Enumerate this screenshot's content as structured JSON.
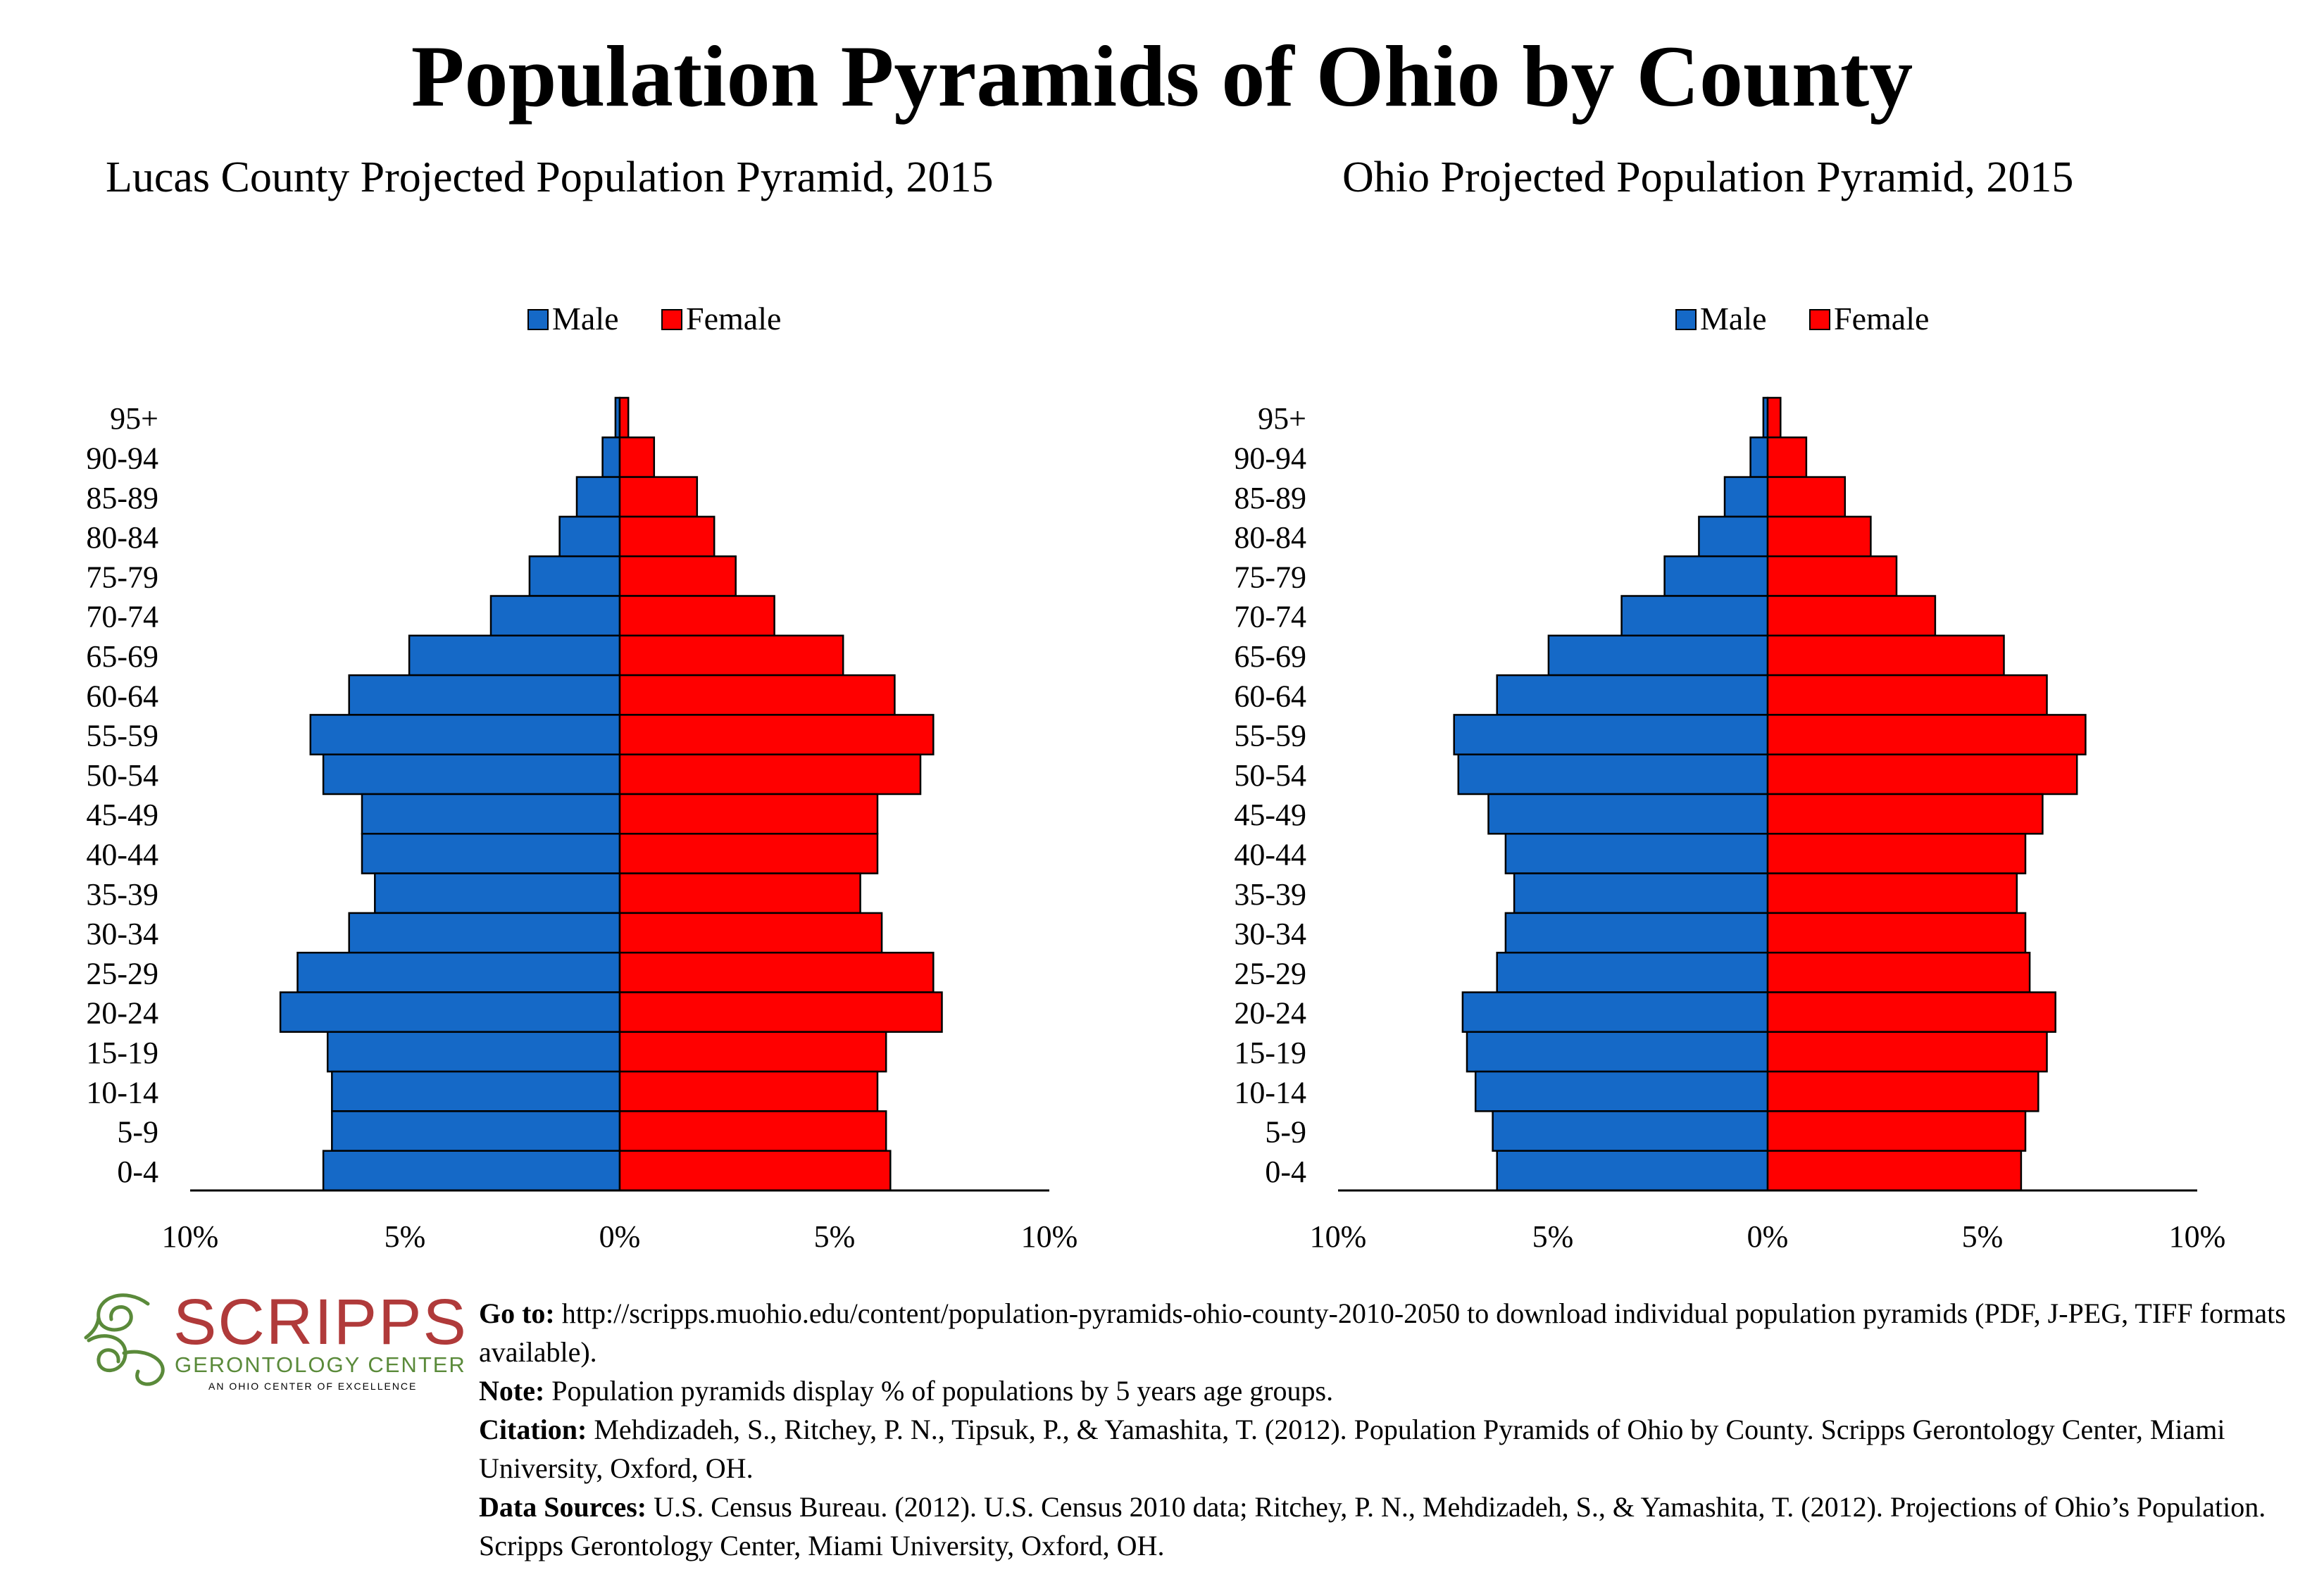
{
  "page_title": "Population Pyramids of Ohio by County",
  "chart_data": [
    {
      "type": "bar",
      "orientation": "horizontal-pyramid",
      "title": "Lucas County Projected Population Pyramid, 2015",
      "categories": [
        "95+",
        "90-94",
        "85-89",
        "80-84",
        "75-79",
        "70-74",
        "65-69",
        "60-64",
        "55-59",
        "50-54",
        "45-49",
        "40-44",
        "35-39",
        "30-34",
        "25-29",
        "20-24",
        "15-19",
        "10-14",
        "5-9",
        "0-4"
      ],
      "series": [
        {
          "name": "Male",
          "color": "#1569c7",
          "values": [
            0.1,
            0.4,
            1.0,
            1.4,
            2.1,
            3.0,
            4.9,
            6.3,
            7.2,
            6.9,
            6.0,
            6.0,
            5.7,
            6.3,
            7.5,
            7.9,
            6.8,
            6.7,
            6.7,
            6.9
          ]
        },
        {
          "name": "Female",
          "color": "#ff0000",
          "values": [
            0.2,
            0.8,
            1.8,
            2.2,
            2.7,
            3.6,
            5.2,
            6.4,
            7.3,
            7.0,
            6.0,
            6.0,
            5.6,
            6.1,
            7.3,
            7.5,
            6.2,
            6.0,
            6.2,
            6.3
          ]
        }
      ],
      "x_ticks": [
        "10%",
        "5%",
        "0%",
        "5%",
        "10%"
      ],
      "xlim": [
        -10,
        10
      ],
      "legend_position": "top-center"
    },
    {
      "type": "bar",
      "orientation": "horizontal-pyramid",
      "title": "Ohio Projected Population Pyramid, 2015",
      "categories": [
        "95+",
        "90-94",
        "85-89",
        "80-84",
        "75-79",
        "70-74",
        "65-69",
        "60-64",
        "55-59",
        "50-54",
        "45-49",
        "40-44",
        "35-39",
        "30-34",
        "25-29",
        "20-24",
        "15-19",
        "10-14",
        "5-9",
        "0-4"
      ],
      "series": [
        {
          "name": "Male",
          "color": "#1569c7",
          "values": [
            0.1,
            0.4,
            1.0,
            1.6,
            2.4,
            3.4,
            5.1,
            6.3,
            7.3,
            7.2,
            6.5,
            6.1,
            5.9,
            6.1,
            6.3,
            7.1,
            7.0,
            6.8,
            6.4,
            6.3
          ]
        },
        {
          "name": "Female",
          "color": "#ff0000",
          "values": [
            0.3,
            0.9,
            1.8,
            2.4,
            3.0,
            3.9,
            5.5,
            6.5,
            7.4,
            7.2,
            6.4,
            6.0,
            5.8,
            6.0,
            6.1,
            6.7,
            6.5,
            6.3,
            6.0,
            5.9
          ]
        }
      ],
      "x_ticks": [
        "10%",
        "5%",
        "0%",
        "5%",
        "10%"
      ],
      "xlim": [
        -10,
        10
      ],
      "legend_position": "top-center"
    }
  ],
  "logo": {
    "word": "SCRIPPS",
    "subtitle": "GERONTOLOGY CENTER",
    "tagline": "AN OHIO CENTER OF EXCELLENCE",
    "colors": {
      "word": "#b03a3a",
      "subtitle": "#5a8a3a",
      "swirl": "#5a8a3a"
    }
  },
  "notes": [
    {
      "label": "Go to:",
      "text": " http://scripps.muohio.edu/content/population-pyramids-ohio-county-2010-2050 to download individual population pyramids (PDF, J-PEG, TIFF formats available)."
    },
    {
      "label": "Note:",
      "text": " Population pyramids display % of populations by 5 years age groups."
    },
    {
      "label": "Citation:",
      "text": " Mehdizadeh, S., Ritchey, P. N., Tipsuk, P., & Yamashita, T. (2012). Population Pyramids of Ohio by County. Scripps Gerontology Center, Miami University, Oxford, OH."
    },
    {
      "label": "Data Sources:",
      "text": " U.S. Census Bureau. (2012). U.S. Census 2010 data; Ritchey, P. N., Mehdizadeh, S., & Yamashita, T. (2012). Projections of Ohio’s Population. Scripps Gerontology Center, Miami University, Oxford, OH."
    }
  ]
}
